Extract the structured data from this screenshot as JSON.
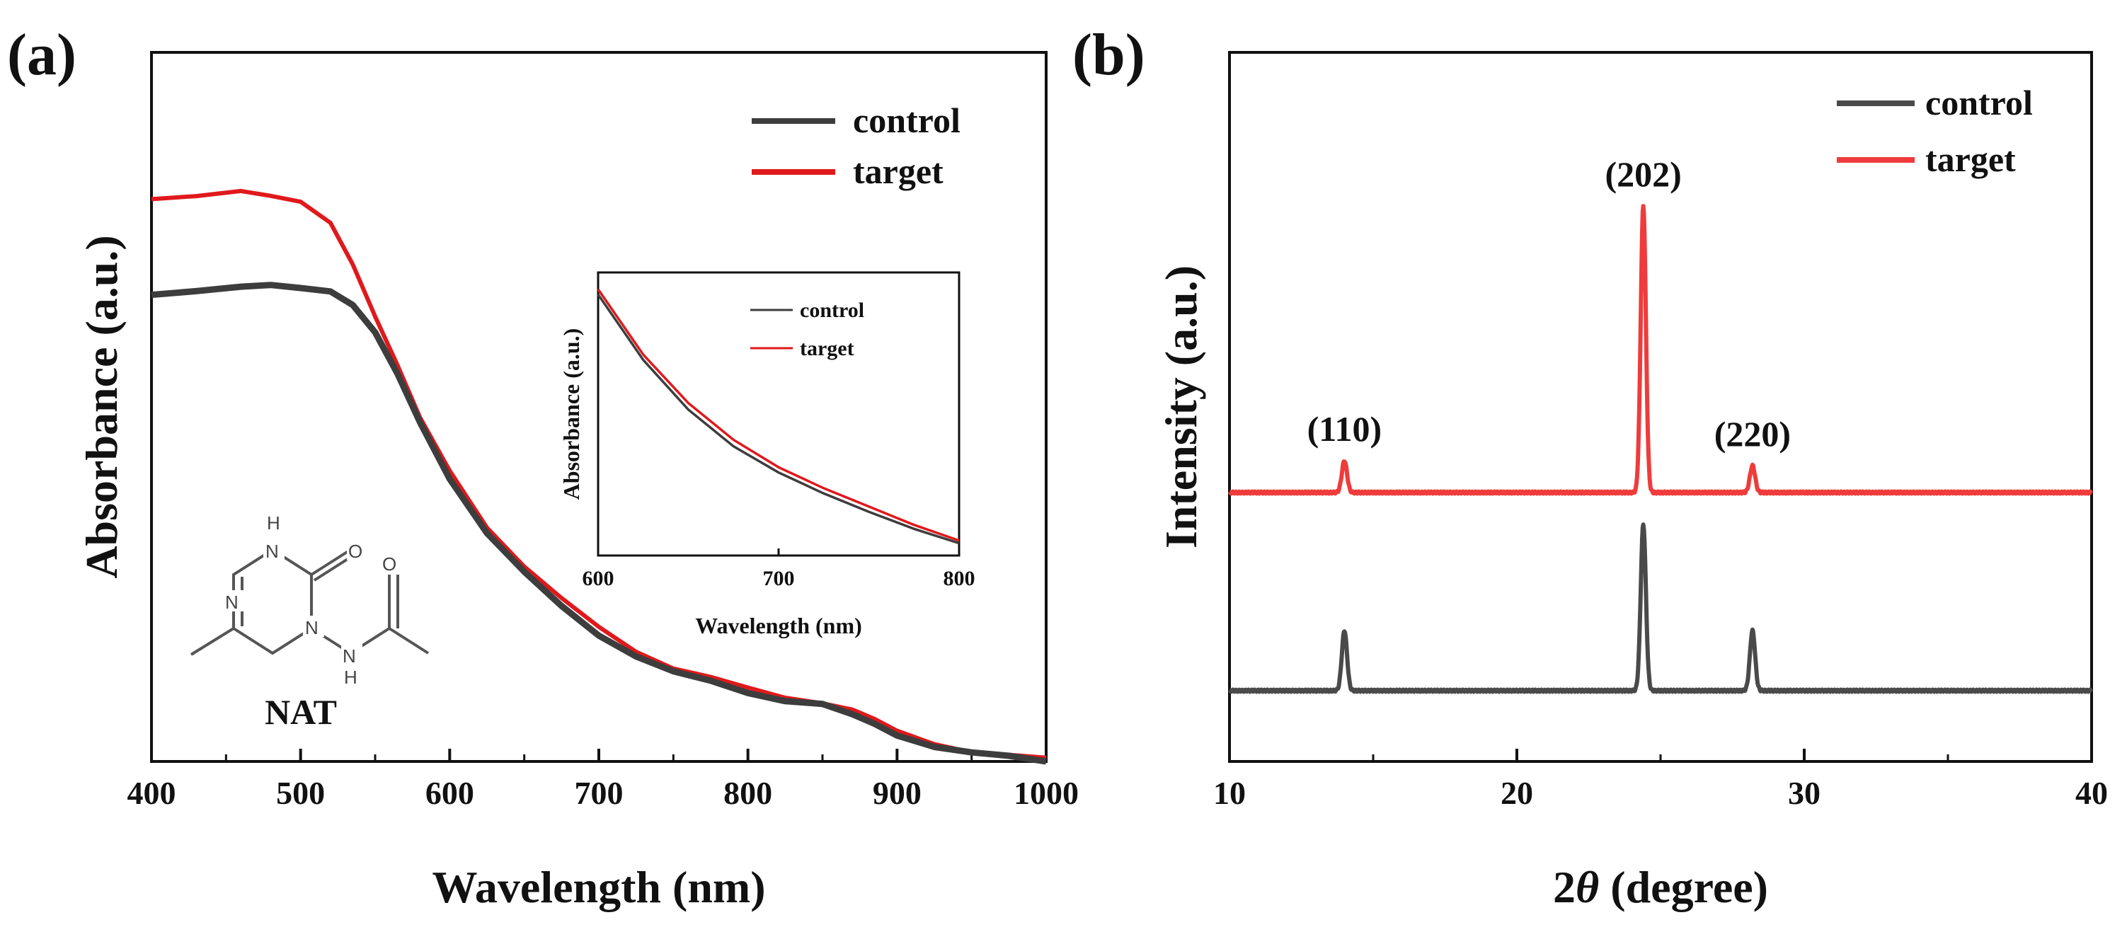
{
  "chart_data": [
    {
      "panel": "(a)",
      "type": "line",
      "xlabel": "Wavelength (nm)",
      "ylabel": "Absorbance (a.u.)",
      "xlim": [
        400,
        1000
      ],
      "ylim": [
        0,
        1.0
      ],
      "xticks": [
        400,
        500,
        600,
        700,
        800,
        900,
        1000
      ],
      "series": [
        {
          "name": "control",
          "color": "#3d3d3d",
          "x": [
            400,
            430,
            460,
            480,
            500,
            520,
            535,
            550,
            565,
            580,
            600,
            625,
            650,
            675,
            700,
            725,
            750,
            775,
            800,
            825,
            850,
            870,
            885,
            900,
            925,
            950,
            975,
            1000
          ],
          "y": [
            0.69,
            0.695,
            0.7,
            0.7,
            0.7,
            0.69,
            0.67,
            0.63,
            0.57,
            0.5,
            0.42,
            0.34,
            0.28,
            0.23,
            0.19,
            0.16,
            0.135,
            0.12,
            0.105,
            0.095,
            0.088,
            0.075,
            0.06,
            0.042,
            0.028,
            0.018,
            0.01,
            0.003
          ]
        },
        {
          "name": "target",
          "color": "#e0191c",
          "x": [
            400,
            430,
            460,
            480,
            500,
            520,
            535,
            550,
            565,
            580,
            600,
            625,
            650,
            675,
            700,
            725,
            750,
            775,
            800,
            825,
            850,
            870,
            885,
            900,
            925,
            950,
            975,
            1000
          ],
          "y": [
            0.83,
            0.832,
            0.837,
            0.833,
            0.825,
            0.79,
            0.73,
            0.655,
            0.585,
            0.51,
            0.43,
            0.35,
            0.29,
            0.24,
            0.2,
            0.168,
            0.142,
            0.125,
            0.11,
            0.1,
            0.092,
            0.079,
            0.064,
            0.046,
            0.031,
            0.021,
            0.013,
            0.006
          ]
        }
      ],
      "legend": [
        "control",
        "target"
      ],
      "legend_position": "top-right",
      "inset": {
        "xlabel": "Wavelength (nm)",
        "ylabel": "Absorbance (a.u.)",
        "xlim": [
          600,
          800
        ],
        "xticks": [
          600,
          700,
          800
        ],
        "legend": [
          "control",
          "target"
        ],
        "series": [
          {
            "name": "control",
            "x": [
              600,
              625,
              650,
              675,
              700,
              725,
              750,
              775,
              800
            ],
            "y": [
              0.97,
              0.72,
              0.53,
              0.39,
              0.29,
              0.21,
              0.14,
              0.075,
              0.02
            ]
          },
          {
            "name": "target",
            "x": [
              600,
              625,
              650,
              675,
              700,
              725,
              750,
              775,
              800
            ],
            "y": [
              0.99,
              0.74,
              0.555,
              0.415,
              0.31,
              0.23,
              0.16,
              0.09,
              0.03
            ]
          }
        ]
      },
      "molecule_label": "NAT",
      "atoms": {
        "n1": "N",
        "nh1": "H",
        "o1": "O",
        "n2": "N",
        "nh2": "N",
        "h2": "H",
        "o2": "O"
      }
    },
    {
      "panel": "(b)",
      "type": "line",
      "xlabel_base": "2",
      "xlabel_theta": "θ",
      "xlabel_rest": " (degree)",
      "ylabel": "Intensity (a.u.)",
      "xlim": [
        10,
        40
      ],
      "xticks": [
        10,
        20,
        30,
        40
      ],
      "baseline": {
        "control": 0.1,
        "target": 0.38
      },
      "peaks": [
        {
          "x": 14.0,
          "label": "(110)",
          "control": 0.085,
          "target": 0.045
        },
        {
          "x": 24.4,
          "label": "(202)",
          "control": 0.235,
          "target": 0.405
        },
        {
          "x": 28.2,
          "label": "(220)",
          "control": 0.085,
          "target": 0.038
        }
      ],
      "series": [
        {
          "name": "control",
          "color": "#4a4a4a"
        },
        {
          "name": "target",
          "color": "#ef3b3b"
        }
      ],
      "legend": [
        "control",
        "target"
      ],
      "legend_position": "top-right"
    }
  ]
}
